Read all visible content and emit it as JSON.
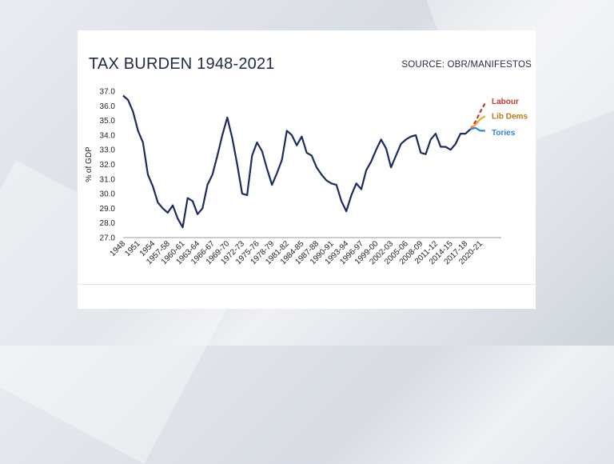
{
  "header": {
    "title": "TAX BURDEN 1948-2021",
    "source": "SOURCE: OBR/MANIFESTOS"
  },
  "colors": {
    "main_line": "#1a2b5e",
    "labour": "#c0392b",
    "lib_dems": "#f0a830",
    "tories": "#2e86de"
  },
  "chart_data": {
    "type": "line",
    "title": "TAX BURDEN 1948-2021",
    "xlabel": "",
    "ylabel": "% of GDP",
    "ylim": [
      27.0,
      37.0
    ],
    "yticks": [
      "27.0",
      "28.0",
      "29.0",
      "30.0",
      "31.0",
      "32.0",
      "33.0",
      "34.0",
      "35.0",
      "36.0",
      "37.0"
    ],
    "xtick_labels": [
      "1948",
      "1951",
      "1954",
      "1957-58",
      "1960-61",
      "1963-64",
      "1966-67",
      "1969-70",
      "1972-73",
      "1975-76",
      "1978-79",
      "1981-82",
      "1984-85",
      "1987-88",
      "1990-91",
      "1993-94",
      "1996-97",
      "1999-00",
      "2002-03",
      "2005-06",
      "2008-09",
      "2011-12",
      "2014-15",
      "2017-18",
      "2020-21"
    ],
    "grid": false,
    "legend": "inline-right",
    "series": [
      {
        "name": "",
        "values": [
          36.7,
          36.4,
          35.6,
          34.3,
          33.5,
          31.3,
          30.5,
          29.4,
          29.0,
          28.7,
          29.2,
          28.3,
          27.7,
          29.7,
          29.5,
          28.6,
          29.0,
          30.6,
          31.3,
          32.6,
          34.0,
          35.2,
          33.8,
          32.0,
          30.0,
          29.9,
          32.6,
          33.5,
          32.9,
          31.7,
          30.6,
          31.4,
          32.3,
          34.3,
          34.0,
          33.3,
          33.9,
          32.8,
          32.6,
          31.8,
          31.3,
          30.9,
          30.7,
          30.6,
          29.5,
          28.8,
          29.9,
          30.7,
          30.3,
          31.6,
          32.2,
          33.0,
          33.7,
          33.1,
          31.8,
          32.6,
          33.4,
          33.7,
          33.9,
          34.0,
          32.8,
          32.7,
          33.7,
          34.1,
          33.2,
          33.2,
          33.0,
          33.4,
          34.1,
          34.1,
          34.4
        ]
      },
      {
        "name": "Labour",
        "start_index": 70,
        "values": [
          34.4,
          34.9,
          35.6,
          36.2
        ]
      },
      {
        "name": "Lib Dems",
        "start_index": 70,
        "values": [
          34.4,
          34.7,
          35.1,
          35.3
        ]
      },
      {
        "name": "Tories",
        "start_index": 70,
        "values": [
          34.4,
          34.5,
          34.3,
          34.3
        ]
      }
    ]
  }
}
